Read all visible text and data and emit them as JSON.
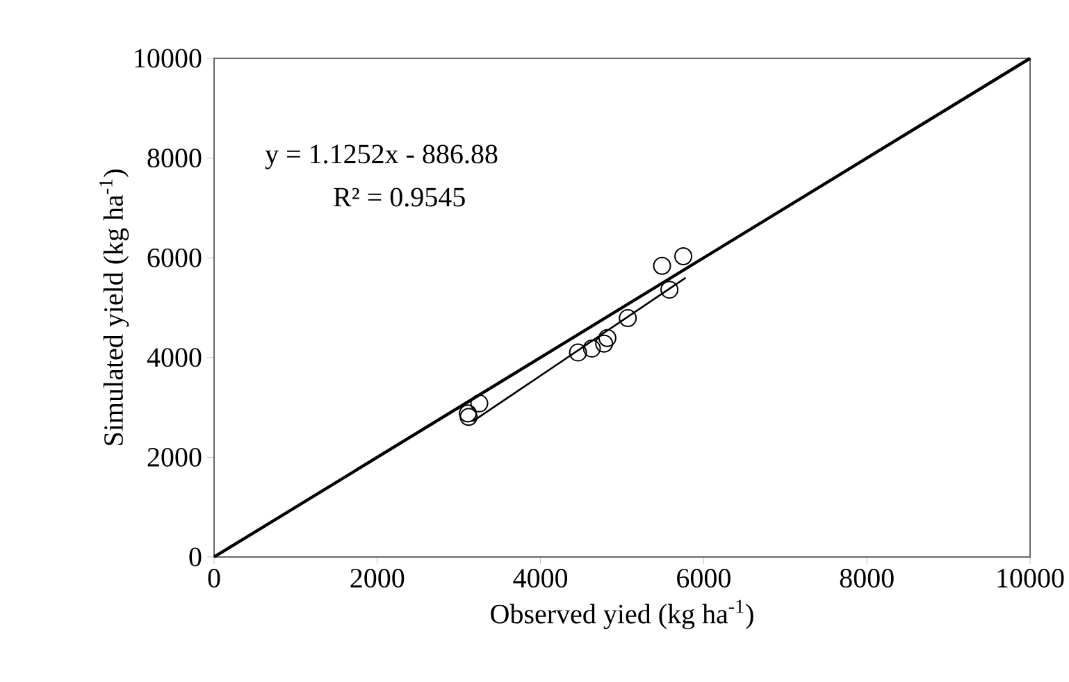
{
  "chart_data": {
    "type": "scatter",
    "xlabel": "Observed yied (kg ha$^{-1}$)",
    "ylabel": "Simulated yield (kg ha$^{-1}$)",
    "annotations": [
      "y = 1.1252x - 886.88",
      "R² = 0.9545"
    ],
    "xlim": [
      0,
      10000
    ],
    "ylim": [
      0,
      10000
    ],
    "xticks": [
      0,
      2000,
      4000,
      6000,
      8000,
      10000
    ],
    "yticks": [
      0,
      2000,
      4000,
      6000,
      8000,
      10000
    ],
    "series": [
      {
        "color": "#000000",
        "marker": "circle",
        "x": [
          3120,
          3110,
          3250,
          4460,
          4630,
          4780,
          4820,
          5070,
          5490,
          5580,
          5750
        ],
        "values": [
          2810,
          2880,
          3080,
          4100,
          4180,
          4280,
          4390,
          4790,
          5840,
          5360,
          6030
        ]
      },
      {
        "type": "line",
        "color": "#000000",
        "marker": "none",
        "x": [
          3170,
          5780
        ],
        "values": [
          2720,
          5600
        ]
      },
      {
        "type": "line",
        "color": "#000000",
        "marker": "none",
        "x": [
          0,
          10000
        ],
        "values": [
          0,
          10000
        ]
      }
    ]
  }
}
